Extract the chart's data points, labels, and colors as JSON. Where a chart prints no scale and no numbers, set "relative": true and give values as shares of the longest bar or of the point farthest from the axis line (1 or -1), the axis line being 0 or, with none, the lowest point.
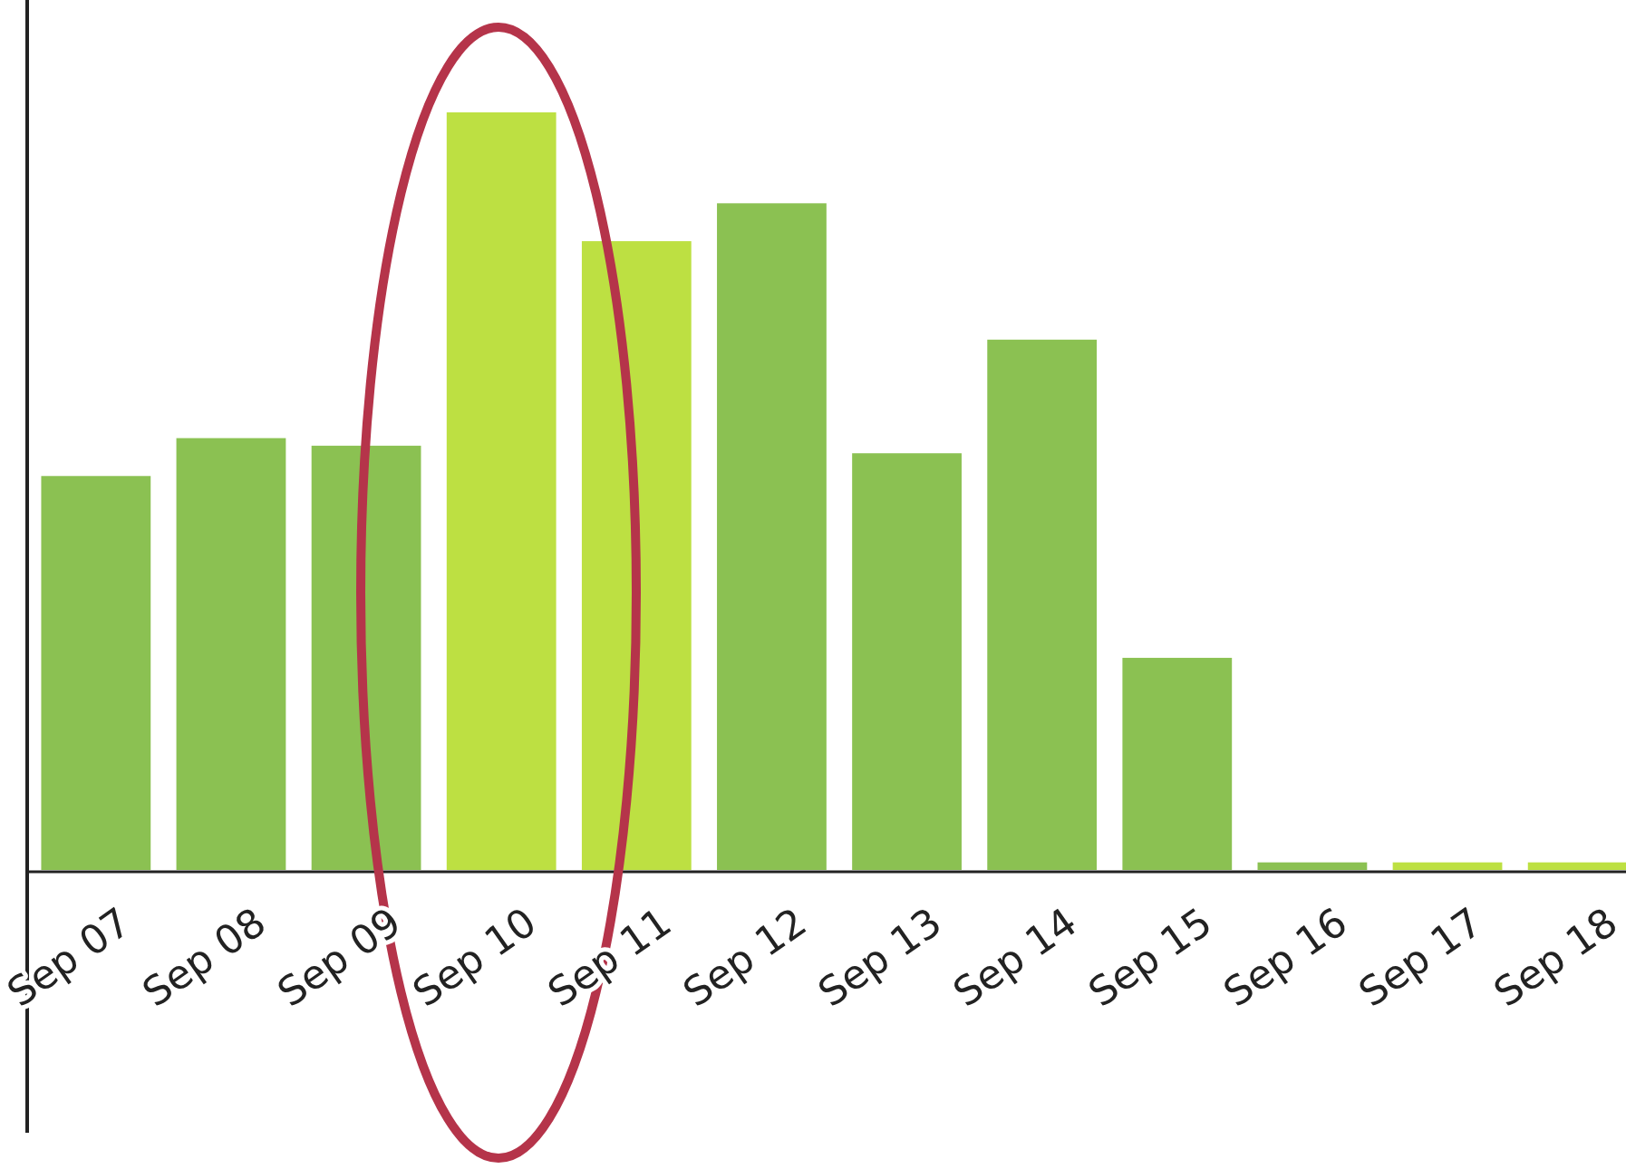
{
  "chart_data": {
    "type": "bar",
    "relative": true,
    "categories": [
      "Sep 07",
      "Sep 08",
      "Sep 09",
      "Sep 10",
      "Sep 11",
      "Sep 12",
      "Sep 13",
      "Sep 14",
      "Sep 15",
      "Sep 16",
      "Sep 17",
      "Sep 18"
    ],
    "values": [
      0.52,
      0.57,
      0.56,
      1,
      0.83,
      0.88,
      0.55,
      0.7,
      0.28,
      0.01,
      0.01,
      0.01
    ],
    "colors": [
      "#8bc152",
      "#8bc152",
      "#8bc152",
      "#bde042",
      "#bde042",
      "#8bc152",
      "#8bc152",
      "#8bc152",
      "#8bc152",
      "#8bc152",
      "#bde042",
      "#bde042"
    ]
  }
}
